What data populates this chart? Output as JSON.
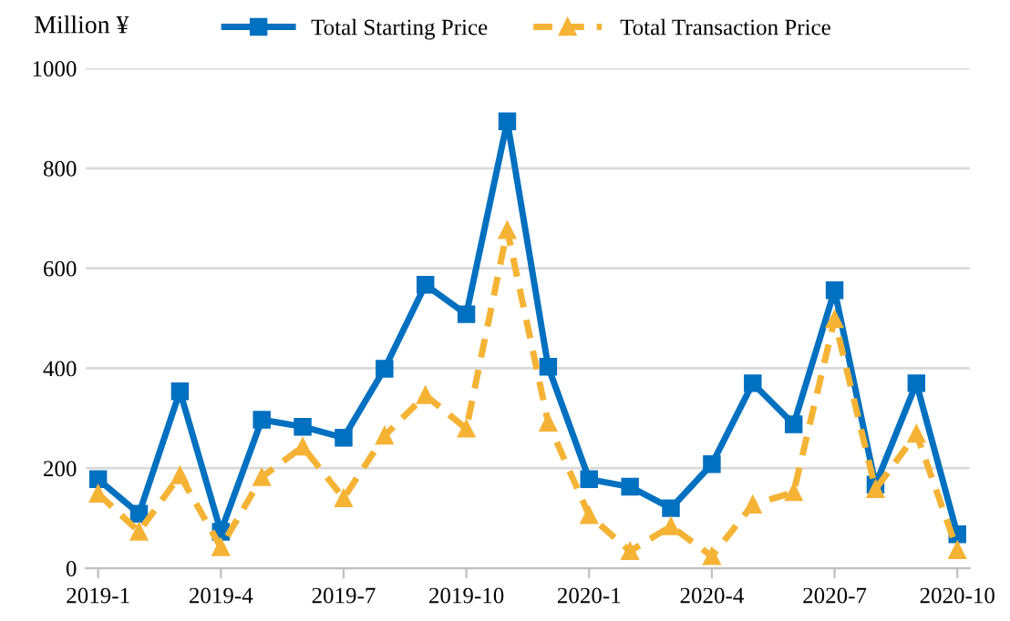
{
  "chart_data": {
    "type": "line",
    "ylabel": "Million ¥",
    "categories": [
      "2019-1",
      null,
      null,
      "2019-4",
      null,
      null,
      "2019-7",
      null,
      null,
      "2019-10",
      null,
      null,
      "2020-1",
      null,
      null,
      "2020-4",
      null,
      null,
      "2020-7",
      null,
      null,
      "2020-10"
    ],
    "series": [
      {
        "name": "Total Starting Price",
        "color": "#0070c0",
        "marker": "square",
        "line_style": "solid",
        "values": [
          178,
          109,
          354,
          73,
          297,
          283,
          261,
          399,
          567,
          508,
          894,
          403,
          178,
          163,
          120,
          208,
          370,
          288,
          556,
          167,
          370,
          68
        ]
      },
      {
        "name": "Total Transaction Price",
        "color": "#f5b335",
        "marker": "triangle",
        "line_style": "dashed",
        "values": [
          149,
          73,
          186,
          42,
          182,
          243,
          140,
          265,
          346,
          279,
          676,
          291,
          106,
          34,
          84,
          24,
          127,
          152,
          498,
          158,
          269,
          36
        ]
      }
    ],
    "ylim": [
      0,
      1000
    ],
    "yticks": [
      0,
      200,
      400,
      600,
      800,
      1000
    ],
    "grid": "y",
    "legend": "top"
  }
}
